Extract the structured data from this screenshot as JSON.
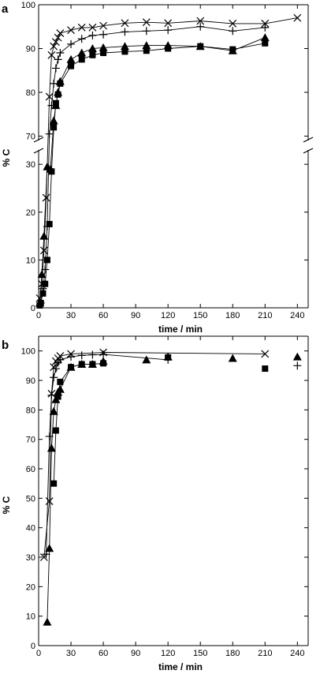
{
  "chart_data": [
    {
      "type": "line",
      "panel_label": "a",
      "xlabel": "time / min",
      "ylabel": "% C",
      "xlim": [
        0,
        250
      ],
      "x_ticks": [
        0,
        30,
        60,
        90,
        120,
        150,
        180,
        210,
        240
      ],
      "y_axis_break": true,
      "y_lower": {
        "ylim": [
          0,
          33
        ],
        "ticks": [
          0,
          10,
          20,
          30
        ]
      },
      "y_upper": {
        "ylim": [
          69,
          100
        ],
        "ticks": [
          70,
          80,
          90,
          100
        ]
      },
      "y_tick_labels": [
        "0",
        "10",
        "20",
        "30",
        "70",
        "80",
        "90",
        "100"
      ],
      "series": [
        {
          "marker": "x",
          "connected": true,
          "x": [
            1,
            3,
            5,
            7,
            10,
            12,
            14,
            16,
            18,
            20,
            30,
            40,
            50,
            60,
            80,
            100,
            120,
            150,
            180,
            210,
            240
          ],
          "y": [
            2,
            5,
            12,
            23,
            79,
            88.5,
            90.5,
            91.5,
            92.5,
            93.5,
            94.2,
            94.8,
            94.8,
            95.2,
            95.8,
            96,
            95.8,
            96.3,
            95.7,
            95.7,
            97
          ]
        },
        {
          "marker": "+",
          "connected": true,
          "x": [
            2,
            4,
            6,
            8,
            10,
            12,
            14,
            16,
            18,
            20,
            30,
            40,
            50,
            60,
            80,
            100,
            120,
            150,
            180,
            210
          ],
          "y": [
            1,
            4,
            8,
            17,
            70.5,
            77,
            82,
            85.5,
            87.5,
            89,
            91,
            92.2,
            93,
            93.2,
            93.8,
            94,
            94.2,
            95,
            94,
            94.8
          ]
        },
        {
          "marker": "triangle",
          "connected": true,
          "x": [
            1,
            3,
            5,
            8,
            11,
            14,
            16,
            18,
            20,
            30,
            40,
            50,
            60,
            80,
            100,
            120,
            150,
            180,
            210
          ],
          "y": [
            1,
            7,
            15,
            29.5,
            29,
            73.5,
            77,
            80,
            82.5,
            87.5,
            89,
            90,
            90.2,
            90.5,
            90.7,
            90.7,
            90.5,
            89.5,
            92.5
          ]
        },
        {
          "marker": "square",
          "connected": true,
          "x": [
            1,
            2,
            4,
            6,
            8,
            10,
            12,
            14,
            16,
            18,
            20,
            30,
            40,
            50,
            60,
            80,
            100,
            120,
            150,
            180,
            210
          ],
          "y": [
            0.5,
            1,
            3,
            5,
            10,
            17.5,
            28.5,
            72,
            77.5,
            79.5,
            82,
            86,
            87.5,
            88.5,
            89,
            89.3,
            89.5,
            90,
            90.5,
            89.8,
            91.2
          ]
        }
      ]
    },
    {
      "type": "line",
      "panel_label": "b",
      "xlabel": "time / min",
      "ylabel": "% C",
      "xlim": [
        0,
        250
      ],
      "ylim": [
        0,
        105
      ],
      "x_ticks": [
        0,
        30,
        60,
        90,
        120,
        150,
        180,
        210,
        240
      ],
      "y_ticks": [
        0,
        10,
        20,
        30,
        40,
        50,
        60,
        70,
        80,
        90,
        100
      ],
      "series": [
        {
          "marker": "x",
          "connected": [
            0,
            9
          ],
          "x": [
            5,
            10,
            12,
            14,
            16,
            18,
            20,
            30,
            60,
            210
          ],
          "y": [
            30,
            49,
            85.5,
            94.5,
            96.5,
            97.5,
            98.3,
            99,
            99.5,
            99
          ]
        },
        {
          "marker": "+",
          "connected": [
            0,
            11
          ],
          "x": [
            7,
            10,
            12,
            14,
            16,
            18,
            20,
            30,
            40,
            50,
            60,
            120,
            240
          ],
          "y": [
            31,
            71,
            85,
            91,
            94,
            96,
            97,
            98,
            98.5,
            98.7,
            98.8,
            97,
            95
          ]
        },
        {
          "marker": "triangle",
          "connected": [
            0,
            8
          ],
          "x": [
            8,
            10,
            12,
            14,
            16,
            18,
            20,
            30,
            40,
            50,
            60,
            100,
            120,
            180,
            240
          ],
          "y": [
            8,
            33,
            67,
            79.5,
            83.5,
            86,
            87,
            94.5,
            95.5,
            95.5,
            96.5,
            97,
            98,
            97.5,
            98
          ]
        },
        {
          "marker": "square",
          "connected": [
            0,
            7
          ],
          "x": [
            14,
            16,
            18,
            20,
            30,
            40,
            50,
            60,
            120,
            210
          ],
          "y": [
            55,
            73,
            84.5,
            89.5,
            94.5,
            95.5,
            95.5,
            95.8,
            97.8,
            94
          ]
        }
      ]
    }
  ]
}
